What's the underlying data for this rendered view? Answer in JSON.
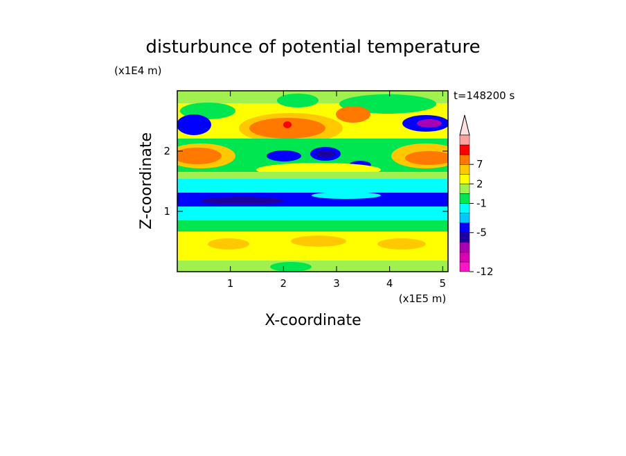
{
  "chart_data": {
    "type": "contour",
    "title": "disturbunce of potential temperature",
    "xlabel": "X-coordinate",
    "ylabel": "Z-coordinate",
    "x_unit_label": "(x1E5 m)",
    "y_unit_label": "(x1E4 m)",
    "time_label": "t=148200 s",
    "xlim": [
      0,
      5.1
    ],
    "ylim": [
      0,
      3
    ],
    "xticks": [
      1,
      2,
      3,
      4,
      5
    ],
    "yticks": [
      1,
      2
    ],
    "colorbar": {
      "levels": [
        -12,
        -10,
        -8,
        -6,
        -5,
        -4,
        -2,
        -1,
        1,
        2,
        5,
        7,
        9,
        11,
        13
      ],
      "colors": [
        "#ff14c8",
        "#dc00b4",
        "#aa00b4",
        "#1e00a0",
        "#0000ff",
        "#00c8ff",
        "#00ffff",
        "#00e650",
        "#a0f050",
        "#ffff00",
        "#ffc800",
        "#ff7800",
        "#ff0000",
        "#ffa0a0"
      ],
      "ticks": [
        7,
        2,
        -1,
        -5,
        -12
      ]
    }
  }
}
